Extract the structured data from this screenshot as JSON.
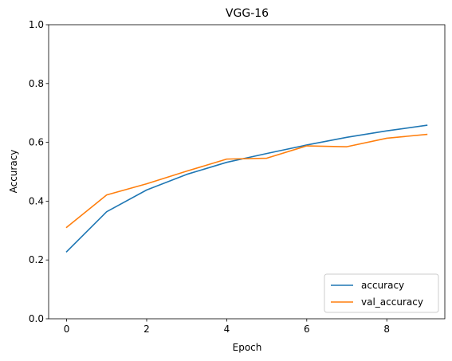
{
  "chart_data": {
    "type": "line",
    "title": "VGG-16",
    "xlabel": "Epoch",
    "ylabel": "Accuracy",
    "x": [
      0,
      1,
      2,
      3,
      4,
      5,
      6,
      7,
      8,
      9
    ],
    "xlim": [
      -0.45,
      9.45
    ],
    "ylim": [
      0.0,
      1.0
    ],
    "xticks": [
      0,
      2,
      4,
      6,
      8
    ],
    "yticks": [
      0.0,
      0.2,
      0.4,
      0.6,
      0.8,
      1.0
    ],
    "xtick_labels": [
      "0",
      "2",
      "4",
      "6",
      "8"
    ],
    "ytick_labels": [
      "0.0",
      "0.2",
      "0.4",
      "0.6",
      "0.8",
      "1.0"
    ],
    "grid": false,
    "legend_position": "lower-right",
    "series": [
      {
        "name": "accuracy",
        "color": "#1f77b4",
        "values": [
          0.228,
          0.364,
          0.438,
          0.491,
          0.532,
          0.562,
          0.591,
          0.617,
          0.639,
          0.658
        ]
      },
      {
        "name": "val_accuracy",
        "color": "#ff7f0e",
        "values": [
          0.311,
          0.421,
          0.459,
          0.502,
          0.543,
          0.546,
          0.588,
          0.585,
          0.614,
          0.627
        ]
      }
    ]
  }
}
